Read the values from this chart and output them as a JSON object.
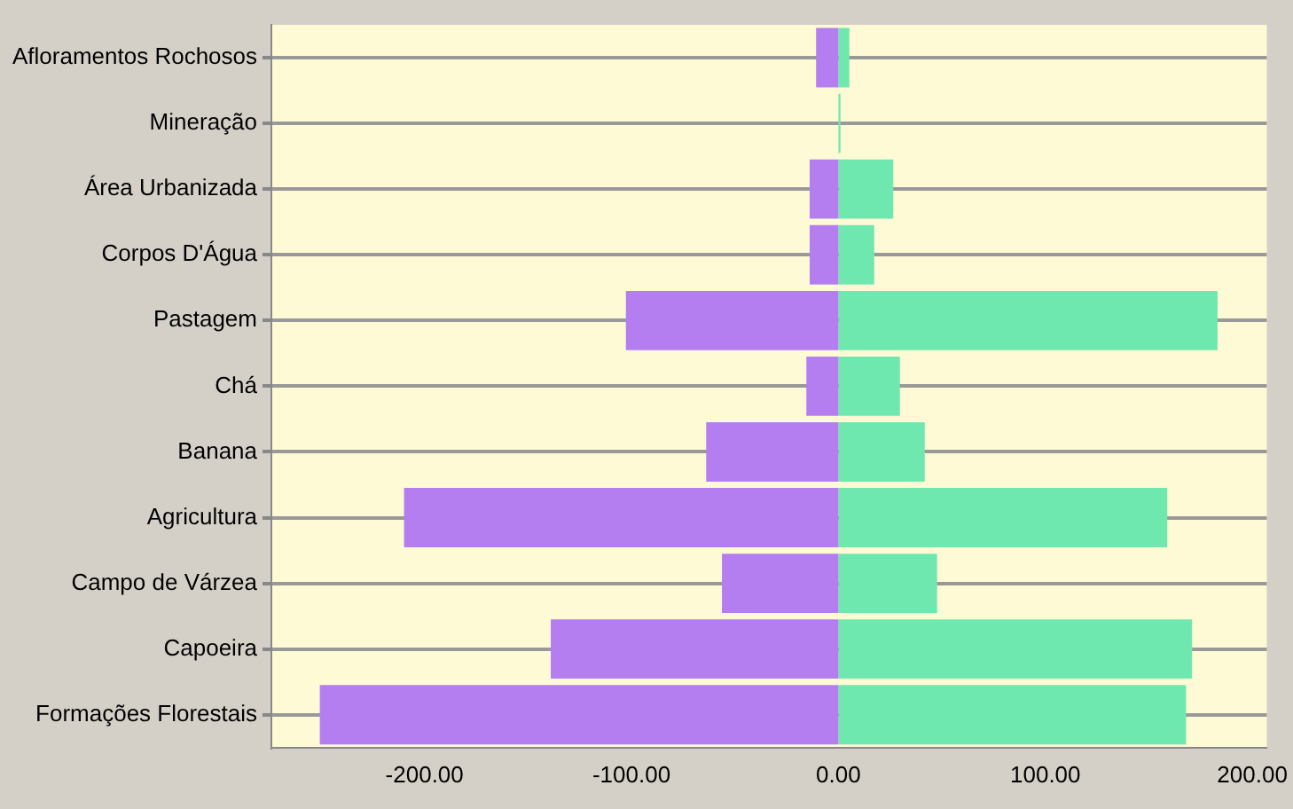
{
  "chart_data": {
    "type": "bar",
    "orientation": "horizontal",
    "stacked": true,
    "categories": [
      "Afloramentos Rochosos",
      "Mineração",
      "Área Urbanizada",
      "Corpos D'Água",
      "Pastagem",
      "Chá",
      "Banana",
      "Agricultura",
      "Campo de Várzea",
      "Capoeira",
      "Formações Florestais"
    ],
    "series": [
      {
        "color": "#b57ef0",
        "values": [
          -10.8,
          0,
          -13.9,
          -13.9,
          -102.7,
          -15.5,
          -63.9,
          -209.9,
          -56.3,
          -139,
          -250.6
        ]
      },
      {
        "color": "#6fe8b0",
        "values": [
          5.3,
          1,
          26.5,
          17.3,
          183.2,
          29.7,
          41.7,
          158.9,
          47.7,
          170.9,
          168
        ]
      }
    ],
    "xlim": [
      -274,
      207
    ],
    "xticks": [
      {
        "value": -200,
        "label": "-200.00"
      },
      {
        "value": -100,
        "label": "-100.00"
      },
      {
        "value": 0,
        "label": "0.00"
      },
      {
        "value": 100,
        "label": "100.00"
      },
      {
        "value": 200,
        "label": "200.00"
      }
    ],
    "grid": "y",
    "legend": false
  }
}
